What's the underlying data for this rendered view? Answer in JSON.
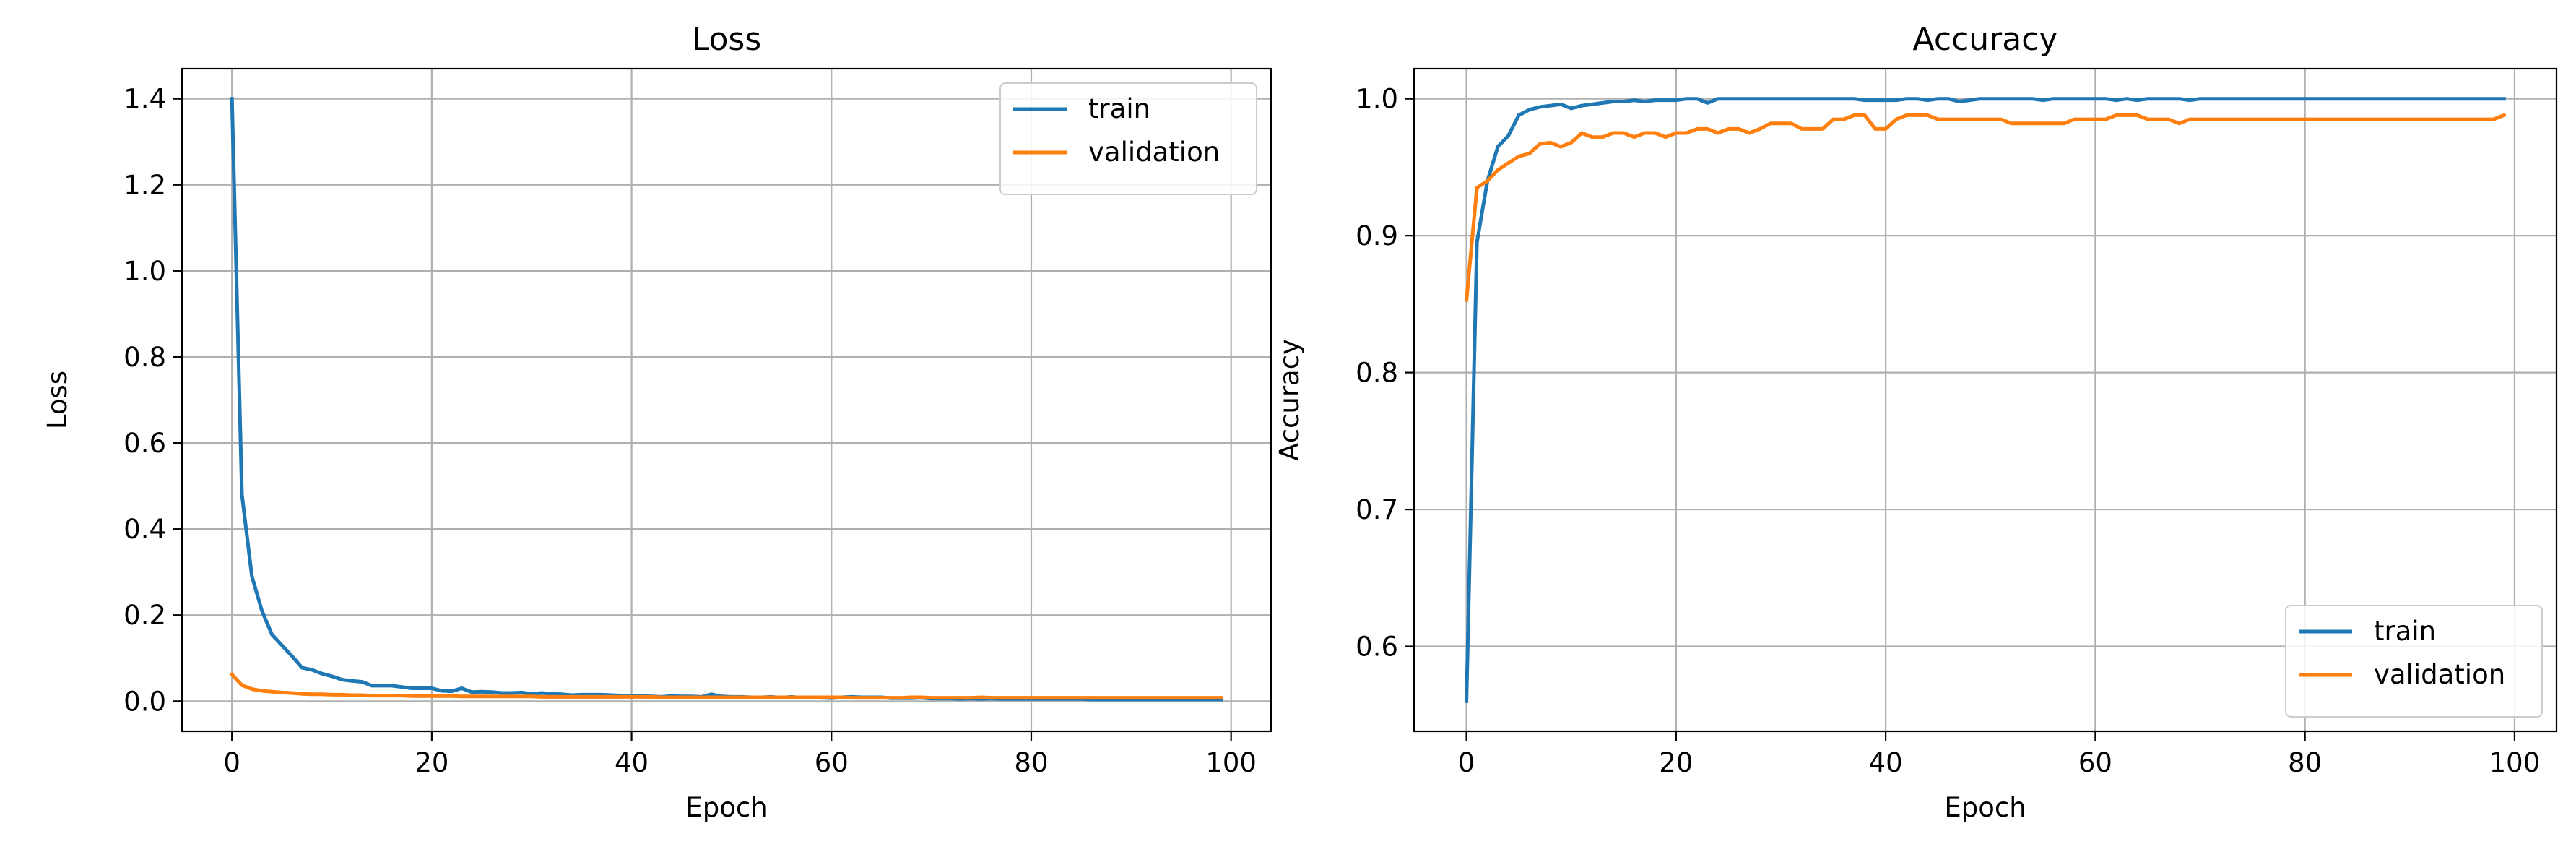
{
  "colors": {
    "train": "#1f77b4",
    "validation": "#ff7f0e",
    "grid": "#b0b0b0",
    "axes": "#000000"
  },
  "chart_data": [
    {
      "type": "line",
      "title": "Loss",
      "xlabel": "Epoch",
      "ylabel": "Loss",
      "xlim": [
        -5,
        104
      ],
      "ylim": [
        -0.07,
        1.47
      ],
      "xticks": [
        0,
        20,
        40,
        60,
        80,
        100
      ],
      "yticks": [
        0.0,
        0.2,
        0.4,
        0.6,
        0.8,
        1.0,
        1.2,
        1.4
      ],
      "ytick_format": 1,
      "grid": true,
      "legend": {
        "position": "top-right",
        "entries": [
          "train",
          "validation"
        ]
      },
      "x": [
        0,
        1,
        2,
        3,
        4,
        5,
        6,
        7,
        8,
        9,
        10,
        11,
        12,
        13,
        14,
        15,
        16,
        17,
        18,
        19,
        20,
        21,
        22,
        23,
        24,
        25,
        26,
        27,
        28,
        29,
        30,
        31,
        32,
        33,
        34,
        35,
        36,
        37,
        38,
        39,
        40,
        41,
        42,
        43,
        44,
        45,
        46,
        47,
        48,
        49,
        50,
        51,
        52,
        53,
        54,
        55,
        56,
        57,
        58,
        59,
        60,
        61,
        62,
        63,
        64,
        65,
        66,
        67,
        68,
        69,
        70,
        71,
        72,
        73,
        74,
        75,
        76,
        77,
        78,
        79,
        80,
        81,
        82,
        83,
        84,
        85,
        86,
        87,
        88,
        89,
        90,
        91,
        92,
        93,
        94,
        95,
        96,
        97,
        98,
        99
      ],
      "series": [
        {
          "name": "train",
          "color": "#1f77b4",
          "values": [
            1.4,
            0.48,
            0.29,
            0.21,
            0.155,
            0.13,
            0.105,
            0.078,
            0.073,
            0.064,
            0.058,
            0.05,
            0.047,
            0.045,
            0.036,
            0.036,
            0.036,
            0.033,
            0.03,
            0.03,
            0.03,
            0.024,
            0.023,
            0.03,
            0.021,
            0.022,
            0.021,
            0.019,
            0.019,
            0.02,
            0.017,
            0.019,
            0.017,
            0.016,
            0.014,
            0.015,
            0.015,
            0.015,
            0.014,
            0.013,
            0.012,
            0.012,
            0.011,
            0.01,
            0.012,
            0.011,
            0.011,
            0.01,
            0.016,
            0.011,
            0.01,
            0.01,
            0.009,
            0.009,
            0.01,
            0.008,
            0.01,
            0.008,
            0.009,
            0.008,
            0.007,
            0.009,
            0.01,
            0.009,
            0.009,
            0.009,
            0.007,
            0.007,
            0.007,
            0.008,
            0.006,
            0.006,
            0.006,
            0.005,
            0.006,
            0.005,
            0.006,
            0.005,
            0.005,
            0.005,
            0.005,
            0.005,
            0.005,
            0.005,
            0.005,
            0.005,
            0.004,
            0.004,
            0.004,
            0.004,
            0.004,
            0.004,
            0.004,
            0.004,
            0.004,
            0.004,
            0.004,
            0.004,
            0.004,
            0.004
          ]
        },
        {
          "name": "validation",
          "color": "#ff7f0e",
          "values": [
            0.062,
            0.037,
            0.028,
            0.024,
            0.022,
            0.02,
            0.019,
            0.017,
            0.016,
            0.016,
            0.015,
            0.015,
            0.014,
            0.014,
            0.013,
            0.013,
            0.013,
            0.013,
            0.012,
            0.012,
            0.012,
            0.012,
            0.012,
            0.011,
            0.011,
            0.011,
            0.011,
            0.011,
            0.011,
            0.011,
            0.011,
            0.01,
            0.01,
            0.01,
            0.01,
            0.01,
            0.01,
            0.01,
            0.01,
            0.01,
            0.01,
            0.01,
            0.01,
            0.009,
            0.009,
            0.009,
            0.009,
            0.009,
            0.009,
            0.009,
            0.009,
            0.009,
            0.009,
            0.009,
            0.009,
            0.009,
            0.009,
            0.009,
            0.009,
            0.009,
            0.009,
            0.009,
            0.008,
            0.008,
            0.008,
            0.008,
            0.008,
            0.008,
            0.009,
            0.009,
            0.008,
            0.008,
            0.008,
            0.008,
            0.008,
            0.009,
            0.008,
            0.008,
            0.008,
            0.008,
            0.008,
            0.008,
            0.008,
            0.008,
            0.008,
            0.008,
            0.008,
            0.008,
            0.008,
            0.008,
            0.008,
            0.008,
            0.008,
            0.008,
            0.008,
            0.008,
            0.008,
            0.008,
            0.008,
            0.008
          ]
        }
      ]
    },
    {
      "type": "line",
      "title": "Accuracy",
      "xlabel": "Epoch",
      "ylabel": "Accuracy",
      "xlim": [
        -5,
        104
      ],
      "ylim": [
        0.538,
        1.022
      ],
      "xticks": [
        0,
        20,
        40,
        60,
        80,
        100
      ],
      "yticks": [
        0.6,
        0.7,
        0.8,
        0.9,
        1.0
      ],
      "ytick_format": 1,
      "grid": true,
      "legend": {
        "position": "bottom-right",
        "entries": [
          "train",
          "validation"
        ]
      },
      "x": [
        0,
        1,
        2,
        3,
        4,
        5,
        6,
        7,
        8,
        9,
        10,
        11,
        12,
        13,
        14,
        15,
        16,
        17,
        18,
        19,
        20,
        21,
        22,
        23,
        24,
        25,
        26,
        27,
        28,
        29,
        30,
        31,
        32,
        33,
        34,
        35,
        36,
        37,
        38,
        39,
        40,
        41,
        42,
        43,
        44,
        45,
        46,
        47,
        48,
        49,
        50,
        51,
        52,
        53,
        54,
        55,
        56,
        57,
        58,
        59,
        60,
        61,
        62,
        63,
        64,
        65,
        66,
        67,
        68,
        69,
        70,
        71,
        72,
        73,
        74,
        75,
        76,
        77,
        78,
        79,
        80,
        81,
        82,
        83,
        84,
        85,
        86,
        87,
        88,
        89,
        90,
        91,
        92,
        93,
        94,
        95,
        96,
        97,
        98,
        99
      ],
      "series": [
        {
          "name": "train",
          "color": "#1f77b4",
          "values": [
            0.56,
            0.895,
            0.94,
            0.965,
            0.973,
            0.988,
            0.992,
            0.994,
            0.995,
            0.996,
            0.993,
            0.995,
            0.996,
            0.997,
            0.998,
            0.998,
            0.999,
            0.998,
            0.999,
            0.999,
            0.999,
            1.0,
            1.0,
            0.997,
            1.0,
            1.0,
            1.0,
            1.0,
            1.0,
            1.0,
            1.0,
            1.0,
            1.0,
            1.0,
            1.0,
            1.0,
            1.0,
            1.0,
            0.999,
            0.999,
            0.999,
            0.999,
            1.0,
            1.0,
            0.999,
            1.0,
            1.0,
            0.998,
            0.999,
            1.0,
            1.0,
            1.0,
            1.0,
            1.0,
            1.0,
            0.999,
            1.0,
            1.0,
            1.0,
            1.0,
            1.0,
            1.0,
            0.999,
            1.0,
            0.999,
            1.0,
            1.0,
            1.0,
            1.0,
            0.999,
            1.0,
            1.0,
            1.0,
            1.0,
            1.0,
            1.0,
            1.0,
            1.0,
            1.0,
            1.0,
            1.0,
            1.0,
            1.0,
            1.0,
            1.0,
            1.0,
            1.0,
            1.0,
            1.0,
            1.0,
            1.0,
            1.0,
            1.0,
            1.0,
            1.0,
            1.0,
            1.0,
            1.0,
            1.0,
            1.0
          ]
        },
        {
          "name": "validation",
          "color": "#ff7f0e",
          "values": [
            0.853,
            0.935,
            0.94,
            0.948,
            0.953,
            0.958,
            0.96,
            0.967,
            0.968,
            0.965,
            0.968,
            0.975,
            0.972,
            0.972,
            0.975,
            0.975,
            0.972,
            0.975,
            0.975,
            0.972,
            0.975,
            0.975,
            0.978,
            0.978,
            0.975,
            0.978,
            0.978,
            0.975,
            0.978,
            0.982,
            0.982,
            0.982,
            0.978,
            0.978,
            0.978,
            0.985,
            0.985,
            0.988,
            0.988,
            0.978,
            0.978,
            0.985,
            0.988,
            0.988,
            0.988,
            0.985,
            0.985,
            0.985,
            0.985,
            0.985,
            0.985,
            0.985,
            0.982,
            0.982,
            0.982,
            0.982,
            0.982,
            0.982,
            0.985,
            0.985,
            0.985,
            0.985,
            0.988,
            0.988,
            0.988,
            0.985,
            0.985,
            0.985,
            0.982,
            0.985,
            0.985,
            0.985,
            0.985,
            0.985,
            0.985,
            0.985,
            0.985,
            0.985,
            0.985,
            0.985,
            0.985,
            0.985,
            0.985,
            0.985,
            0.985,
            0.985,
            0.985,
            0.985,
            0.985,
            0.985,
            0.985,
            0.985,
            0.985,
            0.985,
            0.985,
            0.985,
            0.985,
            0.985,
            0.985,
            0.988
          ]
        }
      ]
    }
  ]
}
